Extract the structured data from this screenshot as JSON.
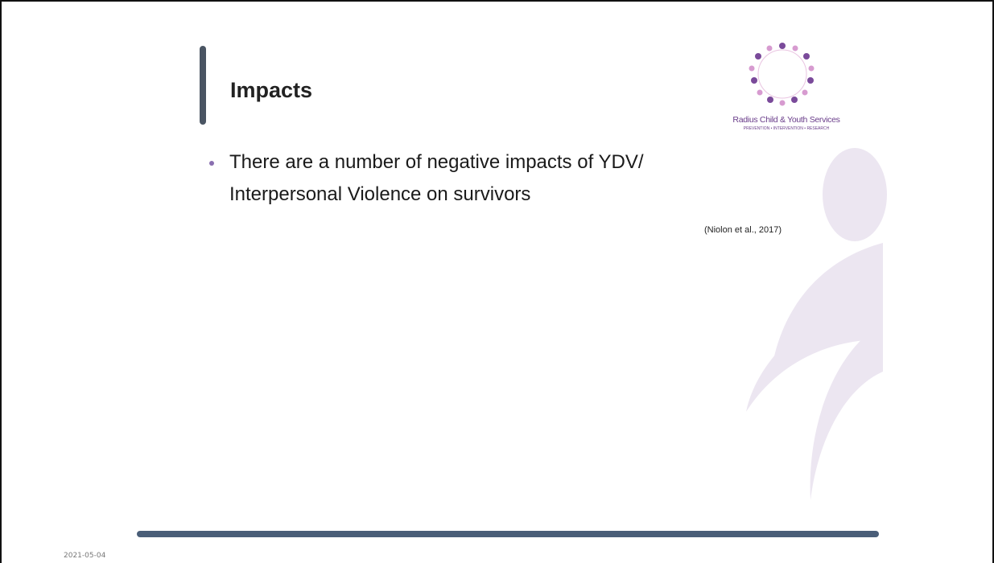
{
  "slide": {
    "title": "Impacts",
    "bullets": [
      {
        "lines": [
          "There are a number of negative impacts of YDV/",
          "Interpersonal Violence on survivors"
        ]
      }
    ],
    "citation": "(Niolon et al., 2017)",
    "logo": {
      "name": "Radius Child & Youth Services",
      "tagline": "PREVENTION • INTERVENTION • RESEARCH"
    },
    "date": "2021-05-04"
  }
}
